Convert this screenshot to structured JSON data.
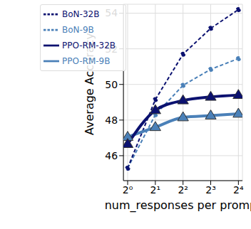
{
  "chart_data": {
    "type": "line",
    "x_label": "num_responses per prompt",
    "y_label": "Average Accuracy",
    "x": [
      1,
      2,
      4,
      8,
      16
    ],
    "log": "x",
    "xlim": [
      0.9,
      17.7
    ],
    "xticks": [
      {
        "value": 1,
        "label": "2⁰"
      },
      {
        "value": 2,
        "label": "2¹"
      },
      {
        "value": 4,
        "label": "2²"
      },
      {
        "value": 8,
        "label": "2³"
      },
      {
        "value": 16,
        "label": "2⁴"
      }
    ],
    "ylim": [
      44.6,
      54.5
    ],
    "yticks": [
      46,
      48,
      50,
      52,
      54
    ],
    "grid": true,
    "legend": "upper left",
    "series": [
      {
        "name": "BoN-9B",
        "color": "#4a80b8",
        "line_style": "dashed",
        "marker": "circle",
        "values": [
          45.3,
          48.3,
          49.95,
          50.85,
          51.45
        ]
      },
      {
        "name": "BoN-32B",
        "color": "#0b1170",
        "line_style": "dashed",
        "marker": "circle",
        "values": [
          45.3,
          49.15,
          51.7,
          53.15,
          54.2
        ]
      },
      {
        "name": "PPO-RM-9B",
        "color": "#4a80b8",
        "line_style": "solid",
        "marker": "triangle",
        "values": [
          47.05,
          47.6,
          48.15,
          48.25,
          48.35
        ]
      },
      {
        "name": "PPO-RM-32B",
        "color": "#0b1170",
        "line_style": "solid",
        "marker": "triangle",
        "values": [
          46.65,
          48.55,
          49.1,
          49.3,
          49.4
        ]
      }
    ]
  }
}
